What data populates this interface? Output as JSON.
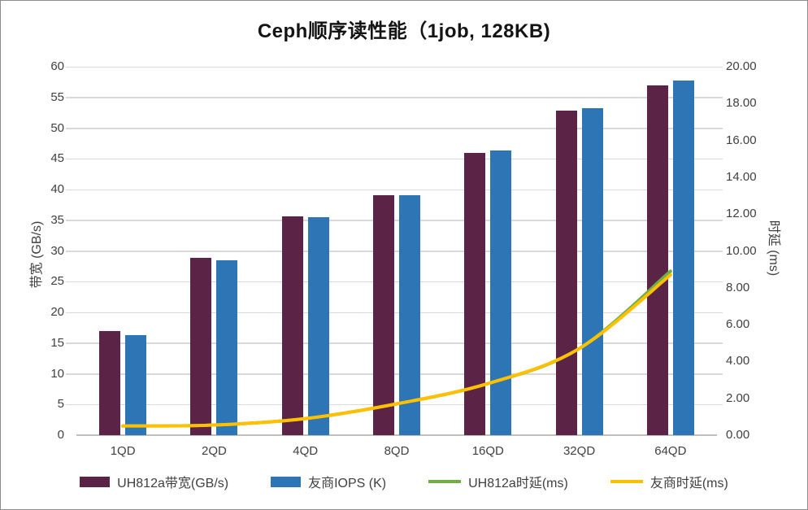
{
  "chart_data": {
    "type": "bar",
    "subtype": "combo-bar-line-dual-axis",
    "title": "Ceph顺序读性能（1job, 128KB)",
    "categories": [
      "1QD",
      "2QD",
      "4QD",
      "8QD",
      "16QD",
      "32QD",
      "64QD"
    ],
    "series": [
      {
        "id": "uh812a-bandwidth-bar",
        "name": "UH812a带宽(GB/s)",
        "type": "bar",
        "axis": "left",
        "color": "#5B2446",
        "values": [
          16.9,
          28.9,
          35.6,
          39.1,
          46.0,
          52.9,
          56.9
        ]
      },
      {
        "id": "vendor-iops-bar",
        "name": "友商IOPS (K)",
        "type": "bar",
        "axis": "left",
        "color": "#2E75B6",
        "values": [
          16.3,
          28.5,
          35.5,
          39.1,
          46.4,
          53.3,
          57.8
        ]
      },
      {
        "id": "uh812a-latency-line",
        "name": "UH812a时延(ms)",
        "type": "line",
        "axis": "right",
        "color": "#70AD47",
        "values": [
          0.5,
          0.55,
          0.9,
          1.7,
          2.8,
          4.7,
          8.9
        ]
      },
      {
        "id": "vendor-latency-line",
        "name": "友商时延(ms)",
        "type": "line",
        "axis": "right",
        "color": "#FFC000",
        "values": [
          0.5,
          0.55,
          0.9,
          1.7,
          2.8,
          4.7,
          8.7
        ]
      }
    ],
    "left_axis": {
      "label": "带宽 (GB/s)",
      "min": 0,
      "max": 60,
      "step": 5,
      "tick_labels": [
        "0",
        "5",
        "10",
        "15",
        "20",
        "25",
        "30",
        "35",
        "40",
        "45",
        "50",
        "55",
        "60"
      ]
    },
    "right_axis": {
      "label": "时延 (ms)",
      "min": 0,
      "max": 20,
      "step": 2,
      "tick_labels": [
        "0.00",
        "2.00",
        "4.00",
        "6.00",
        "8.00",
        "10.00",
        "12.00",
        "14.00",
        "16.00",
        "18.00",
        "20.00"
      ]
    },
    "grid": true,
    "legend_position": "bottom"
  },
  "colors": {
    "grid": "#D9D9D9",
    "axis_line": "#BFBFBF",
    "tick_text": "#404040",
    "title_text": "#141414",
    "frame_border": "#8C8C8C",
    "background": "#FFFFFF"
  }
}
